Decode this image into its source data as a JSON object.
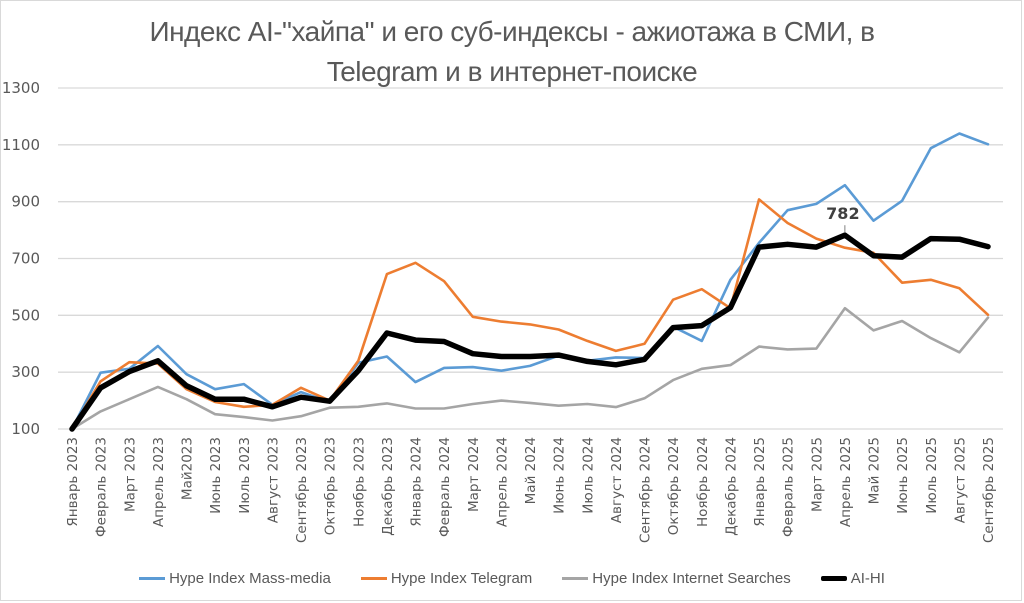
{
  "chart_data": {
    "type": "line",
    "title": "Индекс AI-\"хайпа\" и его суб-индексы - ажиотажа в СМИ, в Telegram и в интернет-поиске",
    "title_lines": [
      "Индекс AI-\"хайпа\" и его суб-индексы - ажиотажа в СМИ, в",
      "Telegram и в интернет-поиске"
    ],
    "xlabel": "",
    "ylabel": "",
    "ylim": [
      100,
      1300
    ],
    "yticks": [
      100,
      300,
      500,
      700,
      900,
      1100,
      1300
    ],
    "grid": true,
    "legend_position": "bottom",
    "categories": [
      "Январь 2023",
      "Февраль 2023",
      "Март 2023",
      "Апрель 2023",
      "Май2023",
      "Июнь 2023",
      "Июль 2023",
      "Август 2023",
      "Сентябрь 2023",
      "Октябрь 2023",
      "Ноябрь 2023",
      "Декабрь 2023",
      "Январь 2024",
      "Февраль 2024",
      "Март 2024",
      "Апрель 2024",
      "Май 2024",
      "Июнь 2024",
      "Июль 2024",
      "Август 2024",
      "Сентябрь 2024",
      "Октябрь 2024",
      "Ноябрь 2024",
      "Декабрь 2024",
      "Январь 2025",
      "Февраль 2025",
      "Март 2025",
      "Апрель 2025",
      "Май 2025",
      "Июнь 2025",
      "Июль 2025",
      "Август 2025",
      "Сентябрь 2025"
    ],
    "series": [
      {
        "name": "Hype Index Mass-media",
        "color": "#5b9bd5",
        "width": 2.6,
        "values": [
          100,
          298,
          312,
          392,
          293,
          240,
          258,
          185,
          230,
          195,
          333,
          355,
          265,
          315,
          318,
          305,
          322,
          358,
          340,
          352,
          350,
          460,
          410,
          625,
          755,
          870,
          892,
          958,
          833,
          903,
          1088,
          1140,
          1102
        ]
      },
      {
        "name": "Hype Index Telegram",
        "color": "#ed7d31",
        "width": 2.6,
        "values": [
          100,
          268,
          335,
          330,
          240,
          195,
          178,
          185,
          245,
          200,
          340,
          645,
          685,
          620,
          495,
          478,
          468,
          450,
          410,
          375,
          400,
          555,
          592,
          525,
          908,
          825,
          770,
          738,
          720,
          615,
          625,
          595,
          502
        ]
      },
      {
        "name": "Hype Index Internet Searches",
        "color": "#a5a5a5",
        "width": 2.6,
        "values": [
          100,
          162,
          205,
          248,
          205,
          152,
          142,
          130,
          145,
          175,
          178,
          190,
          172,
          172,
          188,
          200,
          192,
          182,
          188,
          177,
          208,
          272,
          312,
          325,
          390,
          380,
          383,
          525,
          447,
          480,
          420,
          370,
          492
        ]
      },
      {
        "name": "AI-HI",
        "color": "#000000",
        "width": 5.5,
        "values": [
          100,
          245,
          302,
          340,
          252,
          205,
          205,
          178,
          212,
          198,
          305,
          438,
          413,
          408,
          365,
          355,
          355,
          360,
          338,
          326,
          345,
          457,
          464,
          527,
          740,
          750,
          740,
          782,
          710,
          705,
          770,
          768,
          742
        ]
      }
    ],
    "annotations": [
      {
        "series": "AI-HI",
        "category": "Апрель 2025",
        "value": 782,
        "text": "782"
      }
    ]
  },
  "legend": {
    "items": [
      {
        "label": "Hype Index Mass-media",
        "color": "#5b9bd5"
      },
      {
        "label": "Hype Index Telegram",
        "color": "#ed7d31"
      },
      {
        "label": "Hype Index Internet Searches",
        "color": "#a5a5a5"
      },
      {
        "label": "AI-HI",
        "color": "#000000"
      }
    ]
  }
}
